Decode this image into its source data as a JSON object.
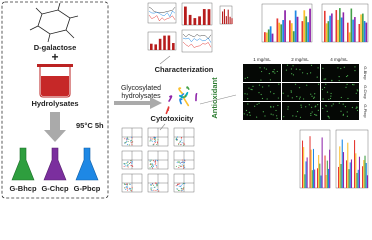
{
  "left": {
    "molecule_label": "D-galactose",
    "beaker_label": "Hydrolysates",
    "condition": "95°C 5h",
    "products": [
      "G-Bhcp",
      "G-Chcp",
      "G-Pbcp"
    ]
  },
  "center": {
    "input": [
      "Glycosylated",
      "hydrolysates"
    ],
    "characterization": "Characterization",
    "antioxidant": "Antioxidant",
    "cytotoxicity": "Cytotoxicity"
  },
  "microscopy": {
    "concentrations": [
      "1 mg/mL",
      "2 mg/mL",
      "4 mg/mL"
    ],
    "samples": [
      "G-Bhcp",
      "G-Chcp",
      "G-Pbcp"
    ]
  }
}
